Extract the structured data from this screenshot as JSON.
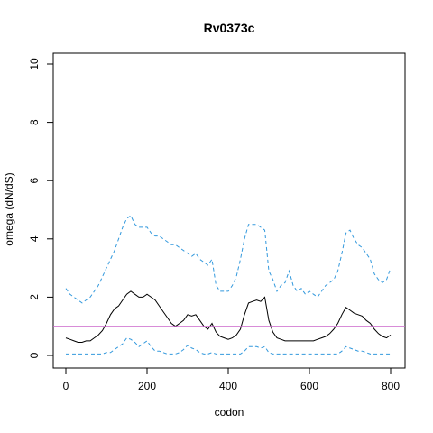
{
  "chart_data": {
    "type": "line",
    "title": "Rv0373c",
    "xlabel": "codon",
    "ylabel": "omega (dN/dS)",
    "xlim": [
      0,
      800
    ],
    "ylim": [
      0,
      10
    ],
    "x_ticks": [
      "0",
      "200",
      "400",
      "600",
      "800"
    ],
    "y_ticks": [
      "0",
      "2",
      "4",
      "6",
      "8",
      "10"
    ],
    "grid": false,
    "reference_line": {
      "y": 1,
      "color": "#cc66cc"
    },
    "series": [
      {
        "role": "upper-bound",
        "style": "dashed",
        "color": "#3399dd",
        "x": [
          0,
          10,
          20,
          30,
          40,
          50,
          60,
          70,
          80,
          90,
          100,
          110,
          120,
          130,
          140,
          150,
          160,
          170,
          180,
          190,
          200,
          210,
          220,
          230,
          240,
          250,
          260,
          270,
          280,
          290,
          300,
          310,
          320,
          330,
          340,
          350,
          360,
          370,
          380,
          390,
          400,
          410,
          420,
          430,
          440,
          450,
          460,
          470,
          480,
          490,
          500,
          510,
          520,
          530,
          540,
          550,
          560,
          570,
          580,
          590,
          600,
          610,
          620,
          630,
          640,
          650,
          660,
          670,
          680,
          690,
          700,
          710,
          720,
          730,
          740,
          750,
          760,
          770,
          780,
          790,
          800
        ],
        "y": [
          2.3,
          2.1,
          2.0,
          1.9,
          1.8,
          1.9,
          2.0,
          2.2,
          2.4,
          2.7,
          3.0,
          3.3,
          3.6,
          4.0,
          4.4,
          4.7,
          4.8,
          4.5,
          4.4,
          4.4,
          4.4,
          4.2,
          4.1,
          4.1,
          4.0,
          3.9,
          3.8,
          3.8,
          3.7,
          3.6,
          3.5,
          3.4,
          3.5,
          3.3,
          3.2,
          3.1,
          3.3,
          2.4,
          2.2,
          2.2,
          2.2,
          2.4,
          2.7,
          3.3,
          4.0,
          4.5,
          4.5,
          4.5,
          4.4,
          4.3,
          2.9,
          2.6,
          2.2,
          2.4,
          2.5,
          2.9,
          2.4,
          2.2,
          2.3,
          2.1,
          2.2,
          2.1,
          2.0,
          2.2,
          2.4,
          2.5,
          2.6,
          2.9,
          3.5,
          4.2,
          4.3,
          4.0,
          3.8,
          3.7,
          3.5,
          3.3,
          2.8,
          2.6,
          2.5,
          2.6,
          3.0
        ]
      },
      {
        "role": "estimate",
        "style": "solid",
        "color": "#000000",
        "x": [
          0,
          10,
          20,
          30,
          40,
          50,
          60,
          70,
          80,
          90,
          100,
          110,
          120,
          130,
          140,
          150,
          160,
          170,
          180,
          190,
          200,
          210,
          220,
          230,
          240,
          250,
          260,
          270,
          280,
          290,
          300,
          310,
          320,
          330,
          340,
          350,
          360,
          370,
          380,
          390,
          400,
          410,
          420,
          430,
          440,
          450,
          460,
          470,
          480,
          490,
          500,
          510,
          520,
          530,
          540,
          550,
          560,
          570,
          580,
          590,
          600,
          610,
          620,
          630,
          640,
          650,
          660,
          670,
          680,
          690,
          700,
          710,
          720,
          730,
          740,
          750,
          760,
          770,
          780,
          790,
          800
        ],
        "y": [
          0.6,
          0.55,
          0.5,
          0.45,
          0.45,
          0.5,
          0.5,
          0.6,
          0.7,
          0.85,
          1.1,
          1.4,
          1.6,
          1.7,
          1.9,
          2.1,
          2.2,
          2.1,
          2.0,
          2.0,
          2.1,
          2.0,
          1.9,
          1.7,
          1.5,
          1.3,
          1.1,
          1.0,
          1.1,
          1.2,
          1.4,
          1.35,
          1.4,
          1.2,
          1.0,
          0.9,
          1.1,
          0.8,
          0.65,
          0.6,
          0.55,
          0.6,
          0.7,
          0.9,
          1.4,
          1.8,
          1.85,
          1.9,
          1.85,
          2.0,
          1.2,
          0.8,
          0.6,
          0.55,
          0.5,
          0.5,
          0.5,
          0.5,
          0.5,
          0.5,
          0.5,
          0.5,
          0.55,
          0.6,
          0.65,
          0.75,
          0.9,
          1.1,
          1.4,
          1.65,
          1.55,
          1.45,
          1.4,
          1.35,
          1.2,
          1.1,
          0.9,
          0.75,
          0.65,
          0.6,
          0.7
        ]
      },
      {
        "role": "lower-bound",
        "style": "dashed",
        "color": "#3399dd",
        "x": [
          0,
          10,
          20,
          30,
          40,
          50,
          60,
          70,
          80,
          90,
          100,
          110,
          120,
          130,
          140,
          150,
          160,
          170,
          180,
          190,
          200,
          210,
          220,
          230,
          240,
          250,
          260,
          270,
          280,
          290,
          300,
          310,
          320,
          330,
          340,
          350,
          360,
          370,
          380,
          390,
          400,
          410,
          420,
          430,
          440,
          450,
          460,
          470,
          480,
          490,
          500,
          510,
          520,
          530,
          540,
          550,
          560,
          570,
          580,
          590,
          600,
          610,
          620,
          630,
          640,
          650,
          660,
          670,
          680,
          690,
          700,
          710,
          720,
          730,
          740,
          750,
          760,
          770,
          780,
          790,
          800
        ],
        "y": [
          0.05,
          0.05,
          0.05,
          0.05,
          0.05,
          0.05,
          0.05,
          0.05,
          0.05,
          0.05,
          0.1,
          0.1,
          0.2,
          0.3,
          0.4,
          0.6,
          0.55,
          0.45,
          0.3,
          0.4,
          0.5,
          0.3,
          0.15,
          0.15,
          0.1,
          0.05,
          0.05,
          0.05,
          0.1,
          0.2,
          0.35,
          0.25,
          0.2,
          0.1,
          0.05,
          0.05,
          0.1,
          0.05,
          0.05,
          0.05,
          0.05,
          0.05,
          0.05,
          0.05,
          0.15,
          0.3,
          0.3,
          0.3,
          0.25,
          0.3,
          0.1,
          0.05,
          0.05,
          0.05,
          0.05,
          0.05,
          0.05,
          0.05,
          0.05,
          0.05,
          0.05,
          0.05,
          0.05,
          0.05,
          0.05,
          0.05,
          0.05,
          0.05,
          0.15,
          0.3,
          0.25,
          0.2,
          0.15,
          0.15,
          0.1,
          0.05,
          0.05,
          0.05,
          0.05,
          0.05,
          0.05
        ]
      }
    ]
  }
}
